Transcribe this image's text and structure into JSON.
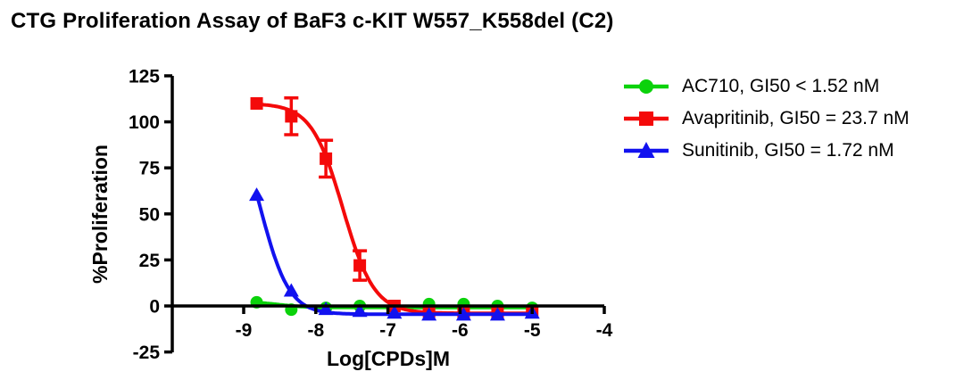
{
  "title": "CTG Proliferation Assay of BaF3 c-KIT W557_K558del (C2)",
  "chart_data": {
    "type": "line",
    "title": "CTG Proliferation Assay of BaF3 c-KIT W557_K558del (C2)",
    "xlabel": "Log[CPDs]M",
    "ylabel": "%Proliferation",
    "xlim": [
      -10,
      -4
    ],
    "ylim": [
      -25,
      125
    ],
    "x_ticks": [
      -9,
      -8,
      -7,
      -6,
      -5,
      -4
    ],
    "y_ticks": [
      125,
      100,
      75,
      50,
      25,
      0,
      -25
    ],
    "grid": false,
    "legend_position": "right",
    "x": [
      -8.82,
      -8.34,
      -7.86,
      -7.39,
      -6.91,
      -6.43,
      -5.95,
      -5.48,
      -5.0
    ],
    "series": [
      {
        "name": "AC710",
        "label": "AC710, GI50 < 1.52 nM",
        "color": "#0BD20B",
        "marker": "circle",
        "values": [
          2,
          -2,
          -1,
          0,
          0,
          1,
          1,
          0,
          -1
        ],
        "errors": [
          0,
          0,
          0,
          0,
          0,
          0,
          0,
          0,
          0
        ],
        "fit": {
          "top": 2.2,
          "bottom": -0.8,
          "logx50": -8.5,
          "hill": 2.5
        }
      },
      {
        "name": "Avapritinib",
        "label": "Avapritinib, GI50 = 23.7 nM",
        "color": "#F40A0A",
        "marker": "square",
        "values": [
          110,
          103,
          80,
          22,
          0,
          -3,
          -4,
          -4,
          -3
        ],
        "errors": [
          0,
          10,
          10,
          8,
          0,
          0,
          0,
          0,
          0
        ],
        "fit": {
          "top": 110,
          "bottom": -4,
          "logx50": -7.625,
          "hill": 2.0
        }
      },
      {
        "name": "Sunitinib",
        "label": "Sunitinib, GI50 = 1.72 nM",
        "color": "#1212EF",
        "marker": "triangle",
        "values": [
          60,
          8,
          -2,
          -3,
          -4,
          -5,
          -5,
          -5,
          -4
        ],
        "errors": [
          0,
          0,
          0,
          0,
          0,
          0,
          0,
          0,
          0
        ],
        "fit": {
          "top": 110,
          "bottom": -4.5,
          "logx50": -8.765,
          "hill": 2.2
        }
      }
    ]
  }
}
